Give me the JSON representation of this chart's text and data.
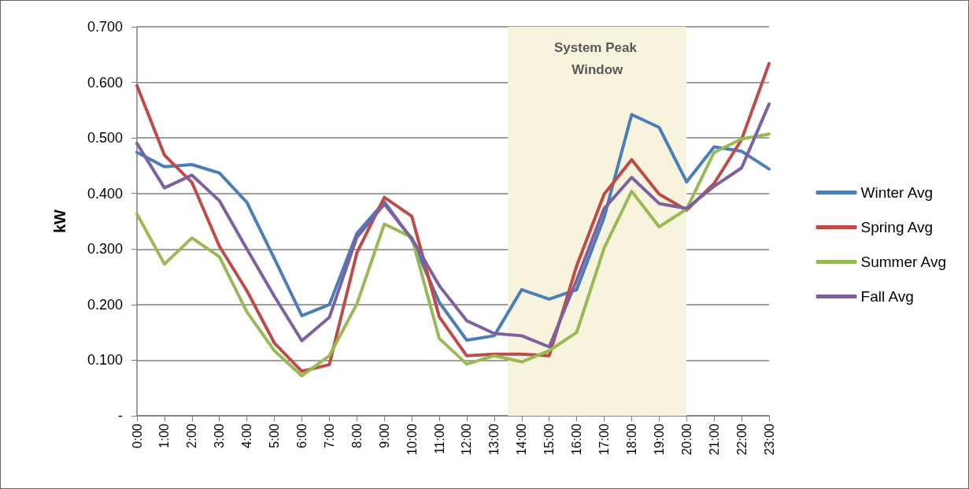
{
  "chart_data": {
    "type": "line",
    "ylabel": "kW",
    "x": [
      0,
      1,
      2,
      3,
      4,
      5,
      6,
      7,
      8,
      9,
      10,
      11,
      12,
      13,
      14,
      15,
      16,
      17,
      18,
      19,
      20,
      21,
      22,
      23
    ],
    "xlim": [
      0,
      23
    ],
    "xticks": [
      {
        "value": 0,
        "label": "0:00"
      },
      {
        "value": 1,
        "label": "1:00"
      },
      {
        "value": 2,
        "label": "2:00"
      },
      {
        "value": 3,
        "label": "3:00"
      },
      {
        "value": 4,
        "label": "4:00"
      },
      {
        "value": 5,
        "label": "5:00"
      },
      {
        "value": 6,
        "label": "6:00"
      },
      {
        "value": 7,
        "label": "7:00"
      },
      {
        "value": 8,
        "label": "8:00"
      },
      {
        "value": 9,
        "label": "9:00"
      },
      {
        "value": 10,
        "label": "10:00"
      },
      {
        "value": 11,
        "label": "11:00"
      },
      {
        "value": 12,
        "label": "12:00"
      },
      {
        "value": 13,
        "label": "13:00"
      },
      {
        "value": 14,
        "label": "14:00"
      },
      {
        "value": 15,
        "label": "15:00"
      },
      {
        "value": 16,
        "label": "16:00"
      },
      {
        "value": 17,
        "label": "17:00"
      },
      {
        "value": 18,
        "label": "18:00"
      },
      {
        "value": 19,
        "label": "19:00"
      },
      {
        "value": 20,
        "label": "20:00"
      },
      {
        "value": 21,
        "label": "21:00"
      },
      {
        "value": 22,
        "label": "22:00"
      },
      {
        "value": 23,
        "label": "23:00"
      }
    ],
    "ylim": [
      0,
      0.7
    ],
    "yticks": [
      {
        "value": 0,
        "label": "-"
      },
      {
        "value": 0.1,
        "label": "0.100"
      },
      {
        "value": 0.2,
        "label": "0.200"
      },
      {
        "value": 0.3,
        "label": "0.300"
      },
      {
        "value": 0.4,
        "label": "0.400"
      },
      {
        "value": 0.5,
        "label": "0.500"
      },
      {
        "value": 0.6,
        "label": "0.600"
      },
      {
        "value": 0.7,
        "label": "0.700"
      }
    ],
    "series": [
      {
        "name": "Winter Avg",
        "color": "#4a7ebb",
        "values": [
          0.474,
          0.448,
          0.452,
          0.437,
          0.384,
          0.283,
          0.18,
          0.2,
          0.328,
          0.385,
          0.317,
          0.204,
          0.136,
          0.144,
          0.227,
          0.21,
          0.227,
          0.357,
          0.542,
          0.519,
          0.421,
          0.484,
          0.476,
          0.444
        ]
      },
      {
        "name": "Spring Avg",
        "color": "#be4b48",
        "values": [
          0.594,
          0.469,
          0.42,
          0.305,
          0.225,
          0.131,
          0.08,
          0.092,
          0.293,
          0.393,
          0.359,
          0.178,
          0.108,
          0.111,
          0.111,
          0.108,
          0.27,
          0.399,
          0.461,
          0.399,
          0.37,
          0.418,
          0.497,
          0.634
        ]
      },
      {
        "name": "Summer Avg",
        "color": "#98b954",
        "values": [
          0.363,
          0.273,
          0.32,
          0.286,
          0.187,
          0.117,
          0.072,
          0.108,
          0.201,
          0.345,
          0.321,
          0.139,
          0.093,
          0.108,
          0.097,
          0.117,
          0.15,
          0.302,
          0.404,
          0.34,
          0.372,
          0.474,
          0.498,
          0.507
        ]
      },
      {
        "name": "Fall Avg",
        "color": "#7d60a0",
        "values": [
          0.49,
          0.41,
          0.433,
          0.387,
          0.3,
          0.215,
          0.135,
          0.177,
          0.321,
          0.381,
          0.319,
          0.234,
          0.171,
          0.148,
          0.144,
          0.124,
          0.244,
          0.373,
          0.429,
          0.382,
          0.373,
          0.413,
          0.446,
          0.561
        ]
      }
    ],
    "bands": [
      {
        "axis": "x",
        "from": 13.5,
        "to": 20,
        "label": "System Peak Window",
        "color": "#f7f3dc"
      }
    ],
    "grid": "y",
    "legend": "right",
    "marker": "none",
    "line_style": "solid"
  }
}
